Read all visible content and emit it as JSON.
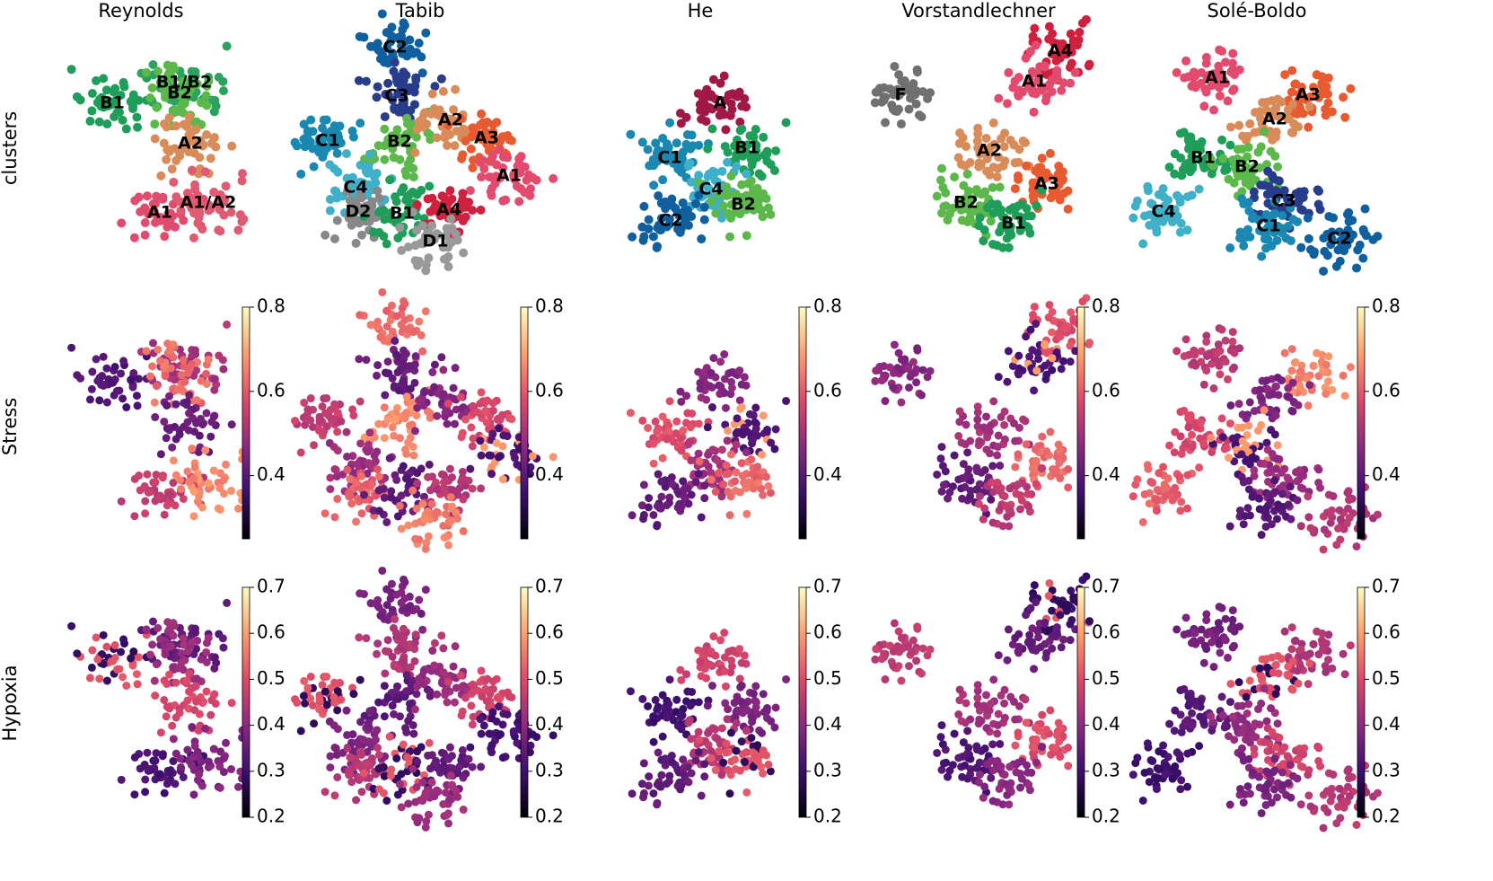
{
  "columns": [
    "Reynolds",
    "Tabib",
    "He",
    "Vorstandlechner",
    "Solé-Boldo"
  ],
  "rows": [
    "clusters",
    "Stress",
    "Hypoxia"
  ],
  "cluster_labels": [
    [
      "B1",
      "B1/B2",
      "B2",
      "A2",
      "A1",
      "A1/A2"
    ],
    [
      "C2",
      "C3",
      "C1",
      "B2",
      "A2",
      "A3",
      "A1",
      "C4",
      "D2",
      "B1",
      "A4",
      "D1"
    ],
    [
      "A",
      "C1",
      "B1",
      "C4",
      "B2",
      "C2"
    ],
    [
      "F",
      "A4",
      "A1",
      "A2",
      "A3",
      "B2",
      "B1"
    ],
    [
      "A1",
      "A3",
      "A2",
      "B1",
      "B2",
      "C3",
      "C4",
      "C1",
      "C2"
    ]
  ],
  "colorbars": {
    "Stress": {
      "lim": [
        0.25,
        0.8
      ],
      "ticks": [
        0.4,
        0.6,
        0.8
      ]
    },
    "Hypoxia": {
      "lim": [
        0.2,
        0.7
      ],
      "ticks": [
        0.2,
        0.3,
        0.4,
        0.5,
        0.6,
        0.7
      ]
    }
  }
}
